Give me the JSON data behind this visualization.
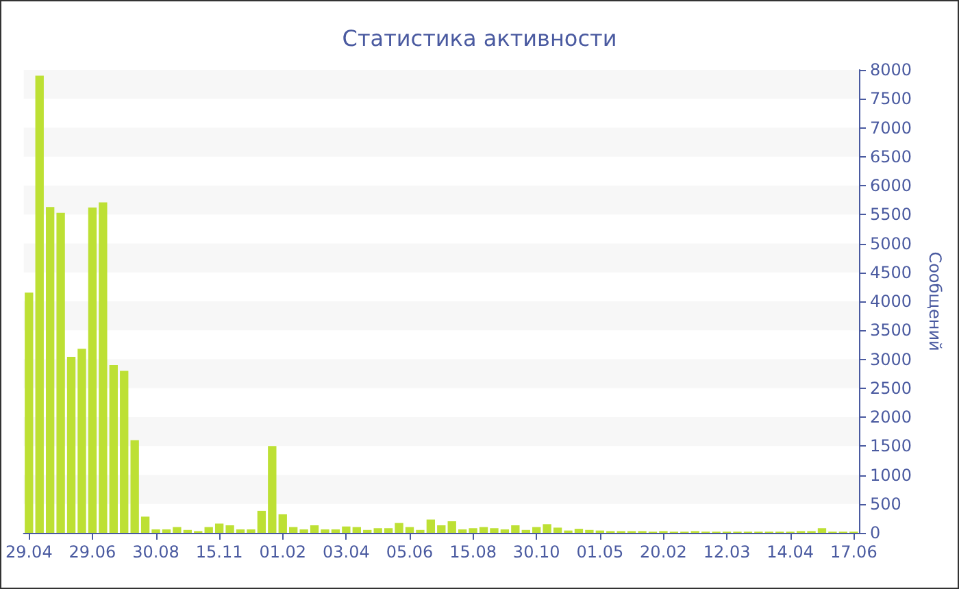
{
  "chart_data": {
    "type": "bar",
    "title": "Статистика активности",
    "ylabel": "Сообщений",
    "categories": [
      "29.04",
      null,
      null,
      null,
      null,
      null,
      "29.06",
      null,
      null,
      null,
      null,
      null,
      "30.08",
      null,
      null,
      null,
      null,
      null,
      "15.11",
      null,
      null,
      null,
      null,
      null,
      "01.02",
      null,
      null,
      null,
      null,
      null,
      "03.04",
      null,
      null,
      null,
      null,
      null,
      "05.06",
      null,
      null,
      null,
      null,
      null,
      "15.08",
      null,
      null,
      null,
      null,
      null,
      "30.10",
      null,
      null,
      null,
      null,
      null,
      "01.05",
      null,
      null,
      null,
      null,
      null,
      "20.02",
      null,
      null,
      null,
      null,
      null,
      "12.03",
      null,
      null,
      null,
      null,
      null,
      "14.04",
      null,
      null,
      null,
      null,
      null,
      "17.06"
    ],
    "values": [
      4150,
      7900,
      5630,
      5530,
      3040,
      3180,
      5620,
      5710,
      2900,
      2800,
      1600,
      280,
      60,
      60,
      100,
      50,
      30,
      100,
      160,
      130,
      60,
      60,
      380,
      1500,
      320,
      100,
      60,
      130,
      60,
      60,
      110,
      100,
      50,
      80,
      80,
      170,
      100,
      50,
      230,
      130,
      200,
      60,
      80,
      100,
      80,
      60,
      130,
      50,
      100,
      150,
      90,
      40,
      70,
      50,
      40,
      30,
      30,
      30,
      30,
      20,
      30,
      20,
      20,
      30,
      20,
      20,
      20,
      20,
      20,
      20,
      20,
      20,
      20,
      30,
      30,
      80,
      20,
      20,
      20
    ],
    "color": "#bde034",
    "ylim": [
      0,
      8000
    ],
    "yticks": [
      0,
      500,
      1000,
      1500,
      2000,
      2500,
      3000,
      3500,
      4000,
      4500,
      5000,
      5500,
      6000,
      6500,
      7000,
      7500,
      8000
    ],
    "bands": [
      {
        "axis": "y",
        "from": 500,
        "to": 1000,
        "color": "#f7f7f7"
      },
      {
        "axis": "y",
        "from": 1500,
        "to": 2000,
        "color": "#f7f7f7"
      },
      {
        "axis": "y",
        "from": 2500,
        "to": 3000,
        "color": "#f7f7f7"
      },
      {
        "axis": "y",
        "from": 3500,
        "to": 4000,
        "color": "#f7f7f7"
      },
      {
        "axis": "y",
        "from": 4500,
        "to": 5000,
        "color": "#f7f7f7"
      },
      {
        "axis": "y",
        "from": 5500,
        "to": 6000,
        "color": "#f7f7f7"
      },
      {
        "axis": "y",
        "from": 6500,
        "to": 7000,
        "color": "#f7f7f7"
      },
      {
        "axis": "y",
        "from": 7500,
        "to": 8000,
        "color": "#f7f7f7"
      }
    ]
  }
}
